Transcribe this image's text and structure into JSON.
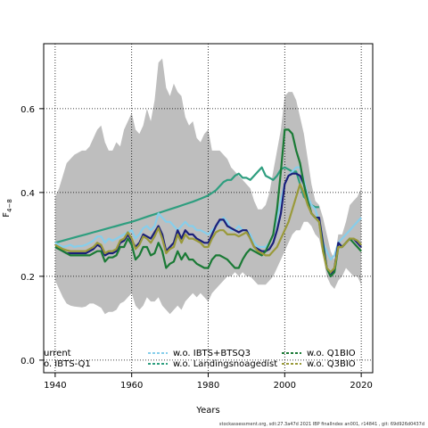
{
  "chart_data": {
    "type": "line",
    "xlabel": "Years",
    "ylabel_main": "F",
    "ylabel_sub": "4−8",
    "xlim": [
      1937,
      2023
    ],
    "ylim": [
      -0.03,
      0.755
    ],
    "x_ticks": [
      1940,
      1960,
      1980,
      2000,
      2020
    ],
    "y_ticks": [
      0.0,
      0.2,
      0.4,
      0.6
    ],
    "y_tick_labels": [
      "0.0",
      "0.2",
      "0.4",
      "0.6"
    ],
    "grid": true,
    "legend_placement": "bottom",
    "footer": "stockassessment.org, sdt:27.3a47d 2021 IBP finalIndex  an001, r14841 , git: 69d926d0437d",
    "band": {
      "name": "confidence interval",
      "color": "#bebebe",
      "x": [
        1940,
        1941,
        1942,
        1943,
        1944,
        1945,
        1946,
        1947,
        1948,
        1949,
        1950,
        1951,
        1952,
        1953,
        1954,
        1955,
        1956,
        1957,
        1958,
        1959,
        1960,
        1961,
        1962,
        1963,
        1964,
        1965,
        1966,
        1967,
        1968,
        1969,
        1970,
        1971,
        1972,
        1973,
        1974,
        1975,
        1976,
        1977,
        1978,
        1979,
        1980,
        1981,
        1982,
        1983,
        1984,
        1985,
        1986,
        1987,
        1988,
        1989,
        1990,
        1991,
        1992,
        1993,
        1994,
        1995,
        1996,
        1997,
        1998,
        1999,
        2000,
        2001,
        2002,
        2003,
        2004,
        2005,
        2006,
        2007,
        2008,
        2009,
        2010,
        2011,
        2012,
        2013,
        2014,
        2015,
        2016,
        2017,
        2018,
        2019,
        2020
      ],
      "upper": [
        0.39,
        0.41,
        0.44,
        0.47,
        0.48,
        0.49,
        0.495,
        0.5,
        0.5,
        0.51,
        0.53,
        0.55,
        0.56,
        0.52,
        0.5,
        0.5,
        0.52,
        0.51,
        0.55,
        0.57,
        0.59,
        0.55,
        0.54,
        0.56,
        0.6,
        0.57,
        0.62,
        0.71,
        0.72,
        0.65,
        0.63,
        0.66,
        0.64,
        0.63,
        0.58,
        0.56,
        0.57,
        0.53,
        0.52,
        0.54,
        0.55,
        0.5,
        0.5,
        0.5,
        0.49,
        0.48,
        0.46,
        0.45,
        0.44,
        0.43,
        0.42,
        0.41,
        0.38,
        0.36,
        0.36,
        0.37,
        0.4,
        0.45,
        0.5,
        0.55,
        0.63,
        0.64,
        0.64,
        0.62,
        0.58,
        0.54,
        0.48,
        0.42,
        0.38,
        0.37,
        0.34,
        0.3,
        0.26,
        0.24,
        0.3,
        0.3,
        0.33,
        0.37,
        0.38,
        0.39,
        0.41
      ],
      "lower": [
        0.19,
        0.17,
        0.15,
        0.135,
        0.13,
        0.128,
        0.127,
        0.126,
        0.128,
        0.135,
        0.135,
        0.13,
        0.125,
        0.11,
        0.115,
        0.115,
        0.12,
        0.135,
        0.14,
        0.15,
        0.16,
        0.13,
        0.12,
        0.13,
        0.15,
        0.14,
        0.14,
        0.15,
        0.13,
        0.12,
        0.11,
        0.12,
        0.13,
        0.12,
        0.14,
        0.15,
        0.16,
        0.15,
        0.16,
        0.15,
        0.14,
        0.16,
        0.17,
        0.18,
        0.19,
        0.2,
        0.2,
        0.21,
        0.2,
        0.21,
        0.2,
        0.2,
        0.19,
        0.18,
        0.18,
        0.18,
        0.19,
        0.2,
        0.22,
        0.24,
        0.26,
        0.28,
        0.3,
        0.31,
        0.31,
        0.33,
        0.33,
        0.32,
        0.3,
        0.29,
        0.25,
        0.2,
        0.18,
        0.17,
        0.19,
        0.2,
        0.22,
        0.21,
        0.2,
        0.2,
        0.18
      ]
    },
    "series": [
      {
        "name": "w.o. Landingsnoagedist",
        "color": "#2e9e7f",
        "x": [
          1940,
          1942,
          1944,
          1946,
          1948,
          1950,
          1952,
          1954,
          1956,
          1958,
          1960,
          1962,
          1964,
          1966,
          1968,
          1970,
          1972,
          1974,
          1976,
          1978,
          1980,
          1982,
          1984,
          1985,
          1986,
          1987,
          1988,
          1989,
          1990,
          1991,
          1992,
          1993,
          1994,
          1995,
          1996,
          1997,
          1998,
          1999,
          2000,
          2001,
          2002,
          2003,
          2004,
          2005,
          2006,
          2007,
          2008,
          2009
        ],
        "values": [
          0.28,
          0.285,
          0.29,
          0.295,
          0.3,
          0.305,
          0.31,
          0.315,
          0.32,
          0.325,
          0.33,
          0.336,
          0.342,
          0.348,
          0.354,
          0.36,
          0.366,
          0.372,
          0.378,
          0.385,
          0.393,
          0.405,
          0.425,
          0.43,
          0.43,
          0.44,
          0.445,
          0.435,
          0.435,
          0.43,
          0.44,
          0.45,
          0.46,
          0.44,
          0.435,
          0.43,
          0.44,
          0.455,
          0.46,
          0.455,
          0.45,
          0.45,
          0.42,
          0.39,
          0.38,
          0.37,
          0.365,
          0.365
        ]
      },
      {
        "name": "w.o. IBTS+BTSQ3",
        "color": "#87ceeb",
        "x": [
          1940,
          1941,
          1942,
          1943,
          1944,
          1945,
          1946,
          1947,
          1948,
          1949,
          1950,
          1951,
          1952,
          1953,
          1954,
          1955,
          1956,
          1957,
          1958,
          1959,
          1960,
          1961,
          1962,
          1963,
          1964,
          1965,
          1966,
          1967,
          1968,
          1969,
          1970,
          1971,
          1972,
          1973,
          1974,
          1975,
          1976,
          1977,
          1978,
          1979,
          1980,
          1981,
          1982,
          1983,
          1984,
          1985,
          1986,
          1987,
          1988,
          1989,
          1990,
          1991,
          1992,
          1993,
          1994,
          1995,
          1996,
          1997,
          1998,
          1999,
          2000,
          2001,
          2002,
          2003,
          2004,
          2005,
          2006,
          2007,
          2008,
          2009,
          2010,
          2011,
          2012,
          2013,
          2014,
          2015,
          2016,
          2017,
          2018,
          2019,
          2020
        ],
        "values": [
          0.28,
          0.275,
          0.27,
          0.272,
          0.275,
          0.27,
          0.272,
          0.272,
          0.275,
          0.28,
          0.285,
          0.295,
          0.295,
          0.28,
          0.29,
          0.285,
          0.29,
          0.295,
          0.3,
          0.305,
          0.31,
          0.29,
          0.3,
          0.315,
          0.32,
          0.31,
          0.32,
          0.35,
          0.34,
          0.33,
          0.33,
          0.32,
          0.31,
          0.32,
          0.33,
          0.32,
          0.32,
          0.31,
          0.31,
          0.305,
          0.3,
          0.31,
          0.32,
          0.33,
          0.34,
          0.33,
          0.31,
          0.31,
          0.32,
          0.31,
          0.31,
          0.3,
          0.28,
          0.27,
          0.27,
          0.27,
          0.28,
          0.3,
          0.34,
          0.38,
          0.42,
          0.44,
          0.45,
          0.46,
          0.46,
          0.43,
          0.39,
          0.37,
          0.36,
          0.33,
          0.28,
          0.26,
          0.24,
          0.25,
          0.28,
          0.29,
          0.3,
          0.31,
          0.32,
          0.33,
          0.34
        ]
      },
      {
        "name": "w.o. IBTS-Q1",
        "color": "#1a1f7a",
        "x": [
          1940,
          1941,
          1942,
          1943,
          1944,
          1945,
          1946,
          1947,
          1948,
          1949,
          1950,
          1951,
          1952,
          1953,
          1954,
          1955,
          1956,
          1957,
          1958,
          1959,
          1960,
          1961,
          1962,
          1963,
          1964,
          1965,
          1966,
          1967,
          1968,
          1969,
          1970,
          1971,
          1972,
          1973,
          1974,
          1975,
          1976,
          1977,
          1978,
          1979,
          1980,
          1981,
          1982,
          1983,
          1984,
          1985,
          1986,
          1987,
          1988,
          1989,
          1990,
          1991,
          1992,
          1993,
          1994,
          1995,
          1996,
          1997,
          1998,
          1999,
          2000,
          2001,
          2002,
          2003,
          2004,
          2005,
          2006,
          2007,
          2008,
          2009,
          2010,
          2011,
          2012,
          2013,
          2014,
          2015,
          2016,
          2017,
          2018,
          2019,
          2020
        ],
        "values": [
          0.27,
          0.265,
          0.26,
          0.255,
          0.255,
          0.255,
          0.255,
          0.255,
          0.255,
          0.26,
          0.265,
          0.275,
          0.27,
          0.25,
          0.255,
          0.255,
          0.26,
          0.28,
          0.285,
          0.3,
          0.285,
          0.27,
          0.28,
          0.3,
          0.295,
          0.29,
          0.305,
          0.32,
          0.3,
          0.26,
          0.27,
          0.28,
          0.31,
          0.29,
          0.31,
          0.3,
          0.3,
          0.29,
          0.285,
          0.28,
          0.28,
          0.3,
          0.32,
          0.335,
          0.335,
          0.32,
          0.315,
          0.31,
          0.305,
          0.31,
          0.31,
          0.29,
          0.27,
          0.265,
          0.26,
          0.26,
          0.265,
          0.28,
          0.31,
          0.35,
          0.42,
          0.44,
          0.445,
          0.445,
          0.44,
          0.42,
          0.38,
          0.35,
          0.34,
          0.34,
          0.28,
          0.22,
          0.2,
          0.22,
          0.28,
          0.27,
          0.28,
          0.29,
          0.29,
          0.28,
          0.27
        ]
      },
      {
        "name": "w.o. Q1BIO",
        "color": "#1a7a35",
        "x": [
          1940,
          1941,
          1942,
          1943,
          1944,
          1945,
          1946,
          1947,
          1948,
          1949,
          1950,
          1951,
          1952,
          1953,
          1954,
          1955,
          1956,
          1957,
          1958,
          1959,
          1960,
          1961,
          1962,
          1963,
          1964,
          1965,
          1966,
          1967,
          1968,
          1969,
          1970,
          1971,
          1972,
          1973,
          1974,
          1975,
          1976,
          1977,
          1978,
          1979,
          1980,
          1981,
          1982,
          1983,
          1984,
          1985,
          1986,
          1987,
          1988,
          1989,
          1990,
          1991,
          1992,
          1993,
          1994,
          1995,
          1996,
          1997,
          1998,
          1999,
          2000,
          2001,
          2002,
          2003,
          2004,
          2005,
          2006,
          2007,
          2008,
          2009,
          2010,
          2011,
          2012,
          2013,
          2014,
          2015,
          2016,
          2017,
          2018,
          2019,
          2020
        ],
        "values": [
          0.27,
          0.265,
          0.26,
          0.255,
          0.25,
          0.25,
          0.25,
          0.25,
          0.25,
          0.25,
          0.255,
          0.26,
          0.26,
          0.235,
          0.245,
          0.245,
          0.25,
          0.27,
          0.27,
          0.29,
          0.275,
          0.24,
          0.25,
          0.27,
          0.27,
          0.25,
          0.255,
          0.28,
          0.26,
          0.22,
          0.23,
          0.235,
          0.26,
          0.24,
          0.255,
          0.24,
          0.24,
          0.23,
          0.225,
          0.22,
          0.22,
          0.24,
          0.25,
          0.25,
          0.245,
          0.24,
          0.23,
          0.22,
          0.22,
          0.24,
          0.255,
          0.265,
          0.26,
          0.255,
          0.25,
          0.26,
          0.28,
          0.3,
          0.36,
          0.45,
          0.55,
          0.55,
          0.54,
          0.5,
          0.47,
          0.42,
          0.38,
          0.35,
          0.34,
          0.33,
          0.27,
          0.22,
          0.2,
          0.21,
          0.27,
          0.27,
          0.28,
          0.29,
          0.28,
          0.27,
          0.26
        ]
      },
      {
        "name": "w.o. Q3BIO",
        "color": "#9a9a3a",
        "x": [
          1940,
          1941,
          1942,
          1943,
          1944,
          1945,
          1946,
          1947,
          1948,
          1949,
          1950,
          1951,
          1952,
          1953,
          1954,
          1955,
          1956,
          1957,
          1958,
          1959,
          1960,
          1961,
          1962,
          1963,
          1964,
          1965,
          1966,
          1967,
          1968,
          1969,
          1970,
          1971,
          1972,
          1973,
          1974,
          1975,
          1976,
          1977,
          1978,
          1979,
          1980,
          1981,
          1982,
          1983,
          1984,
          1985,
          1986,
          1987,
          1988,
          1989,
          1990,
          1991,
          1992,
          1993,
          1994,
          1995,
          1996,
          1997,
          1998,
          1999,
          2000,
          2001,
          2002,
          2003,
          2004,
          2005,
          2006,
          2007,
          2008,
          2009,
          2010,
          2011,
          2012,
          2013,
          2014,
          2015,
          2016,
          2017,
          2018,
          2019,
          2020
        ],
        "values": [
          0.275,
          0.27,
          0.265,
          0.262,
          0.26,
          0.26,
          0.26,
          0.26,
          0.26,
          0.265,
          0.27,
          0.28,
          0.275,
          0.255,
          0.26,
          0.26,
          0.265,
          0.285,
          0.29,
          0.305,
          0.29,
          0.265,
          0.275,
          0.295,
          0.29,
          0.28,
          0.295,
          0.315,
          0.29,
          0.255,
          0.265,
          0.27,
          0.3,
          0.28,
          0.3,
          0.29,
          0.29,
          0.285,
          0.28,
          0.27,
          0.27,
          0.29,
          0.305,
          0.31,
          0.31,
          0.3,
          0.3,
          0.3,
          0.295,
          0.3,
          0.305,
          0.29,
          0.27,
          0.26,
          0.255,
          0.25,
          0.25,
          0.26,
          0.27,
          0.29,
          0.31,
          0.33,
          0.36,
          0.39,
          0.42,
          0.4,
          0.37,
          0.35,
          0.34,
          0.33,
          0.26,
          0.22,
          0.21,
          0.22,
          0.27,
          0.27,
          0.28,
          0.29,
          0.29,
          0.285,
          0.275
        ]
      }
    ],
    "legend": [
      {
        "label": "urrent",
        "color": "#000000",
        "style": "solid"
      },
      {
        "label": "o. IBTS-Q1",
        "color": "#1a1f7a",
        "style": "solid"
      },
      {
        "label": "w.o. IBTS+BTSQ3",
        "color": "#87ceeb",
        "style": "dashed"
      },
      {
        "label": "w.o. Landingsnoagedist",
        "color": "#2e9e7f",
        "style": "dashed"
      },
      {
        "label": "w.o. Q1BIO",
        "color": "#1a7a35",
        "style": "dashed"
      },
      {
        "label": "w.o. Q3BIO",
        "color": "#9a9a3a",
        "style": "dashed"
      }
    ]
  }
}
